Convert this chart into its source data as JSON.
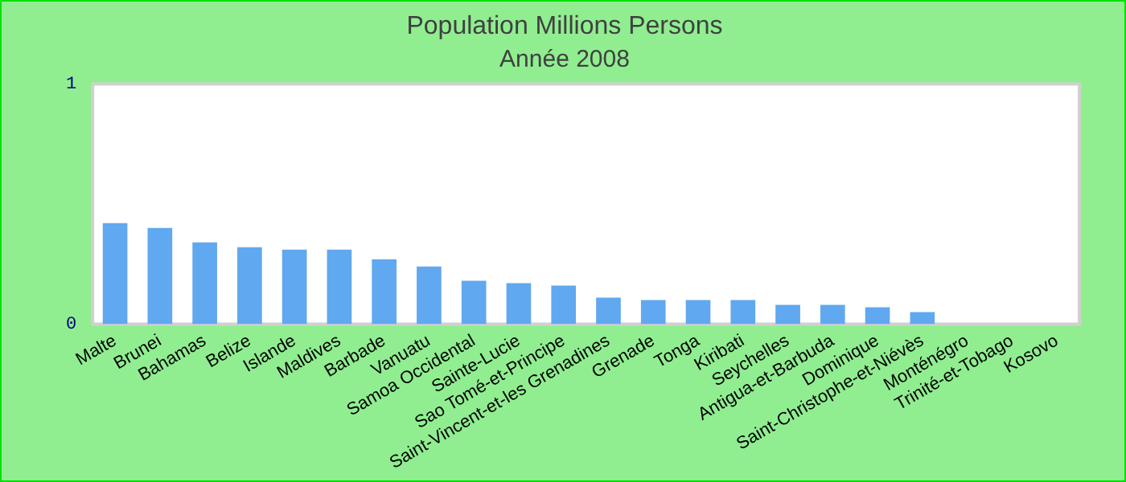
{
  "chart_data": {
    "type": "bar",
    "title": "Population Millions Persons",
    "subtitle": "Année 2008",
    "categories": [
      "Malte",
      "Brunei",
      "Bahamas",
      "Belize",
      "Islande",
      "Maldives",
      "Barbade",
      "Vanuatu",
      "Samoa Occidental",
      "Sainte-Lucie",
      "Sao Tomé-et-Principe",
      "Saint-Vincent-et-les Grenadines",
      "Grenade",
      "Tonga",
      "Kiribati",
      "Seychelles",
      "Antigua-et-Barbuda",
      "Dominique",
      "Saint-Christophe-et-Niévès",
      "Monténégro",
      "Trinité-et-Tobago",
      "Kosovo"
    ],
    "values": [
      0.42,
      0.4,
      0.34,
      0.32,
      0.31,
      0.31,
      0.27,
      0.24,
      0.18,
      0.17,
      0.16,
      0.11,
      0.1,
      0.1,
      0.1,
      0.08,
      0.08,
      0.07,
      0.05,
      null,
      null,
      null
    ],
    "color": "#60a8f0",
    "ylim": [
      0,
      1
    ],
    "yticks": [
      0,
      1
    ],
    "grid": false,
    "legend": false
  }
}
